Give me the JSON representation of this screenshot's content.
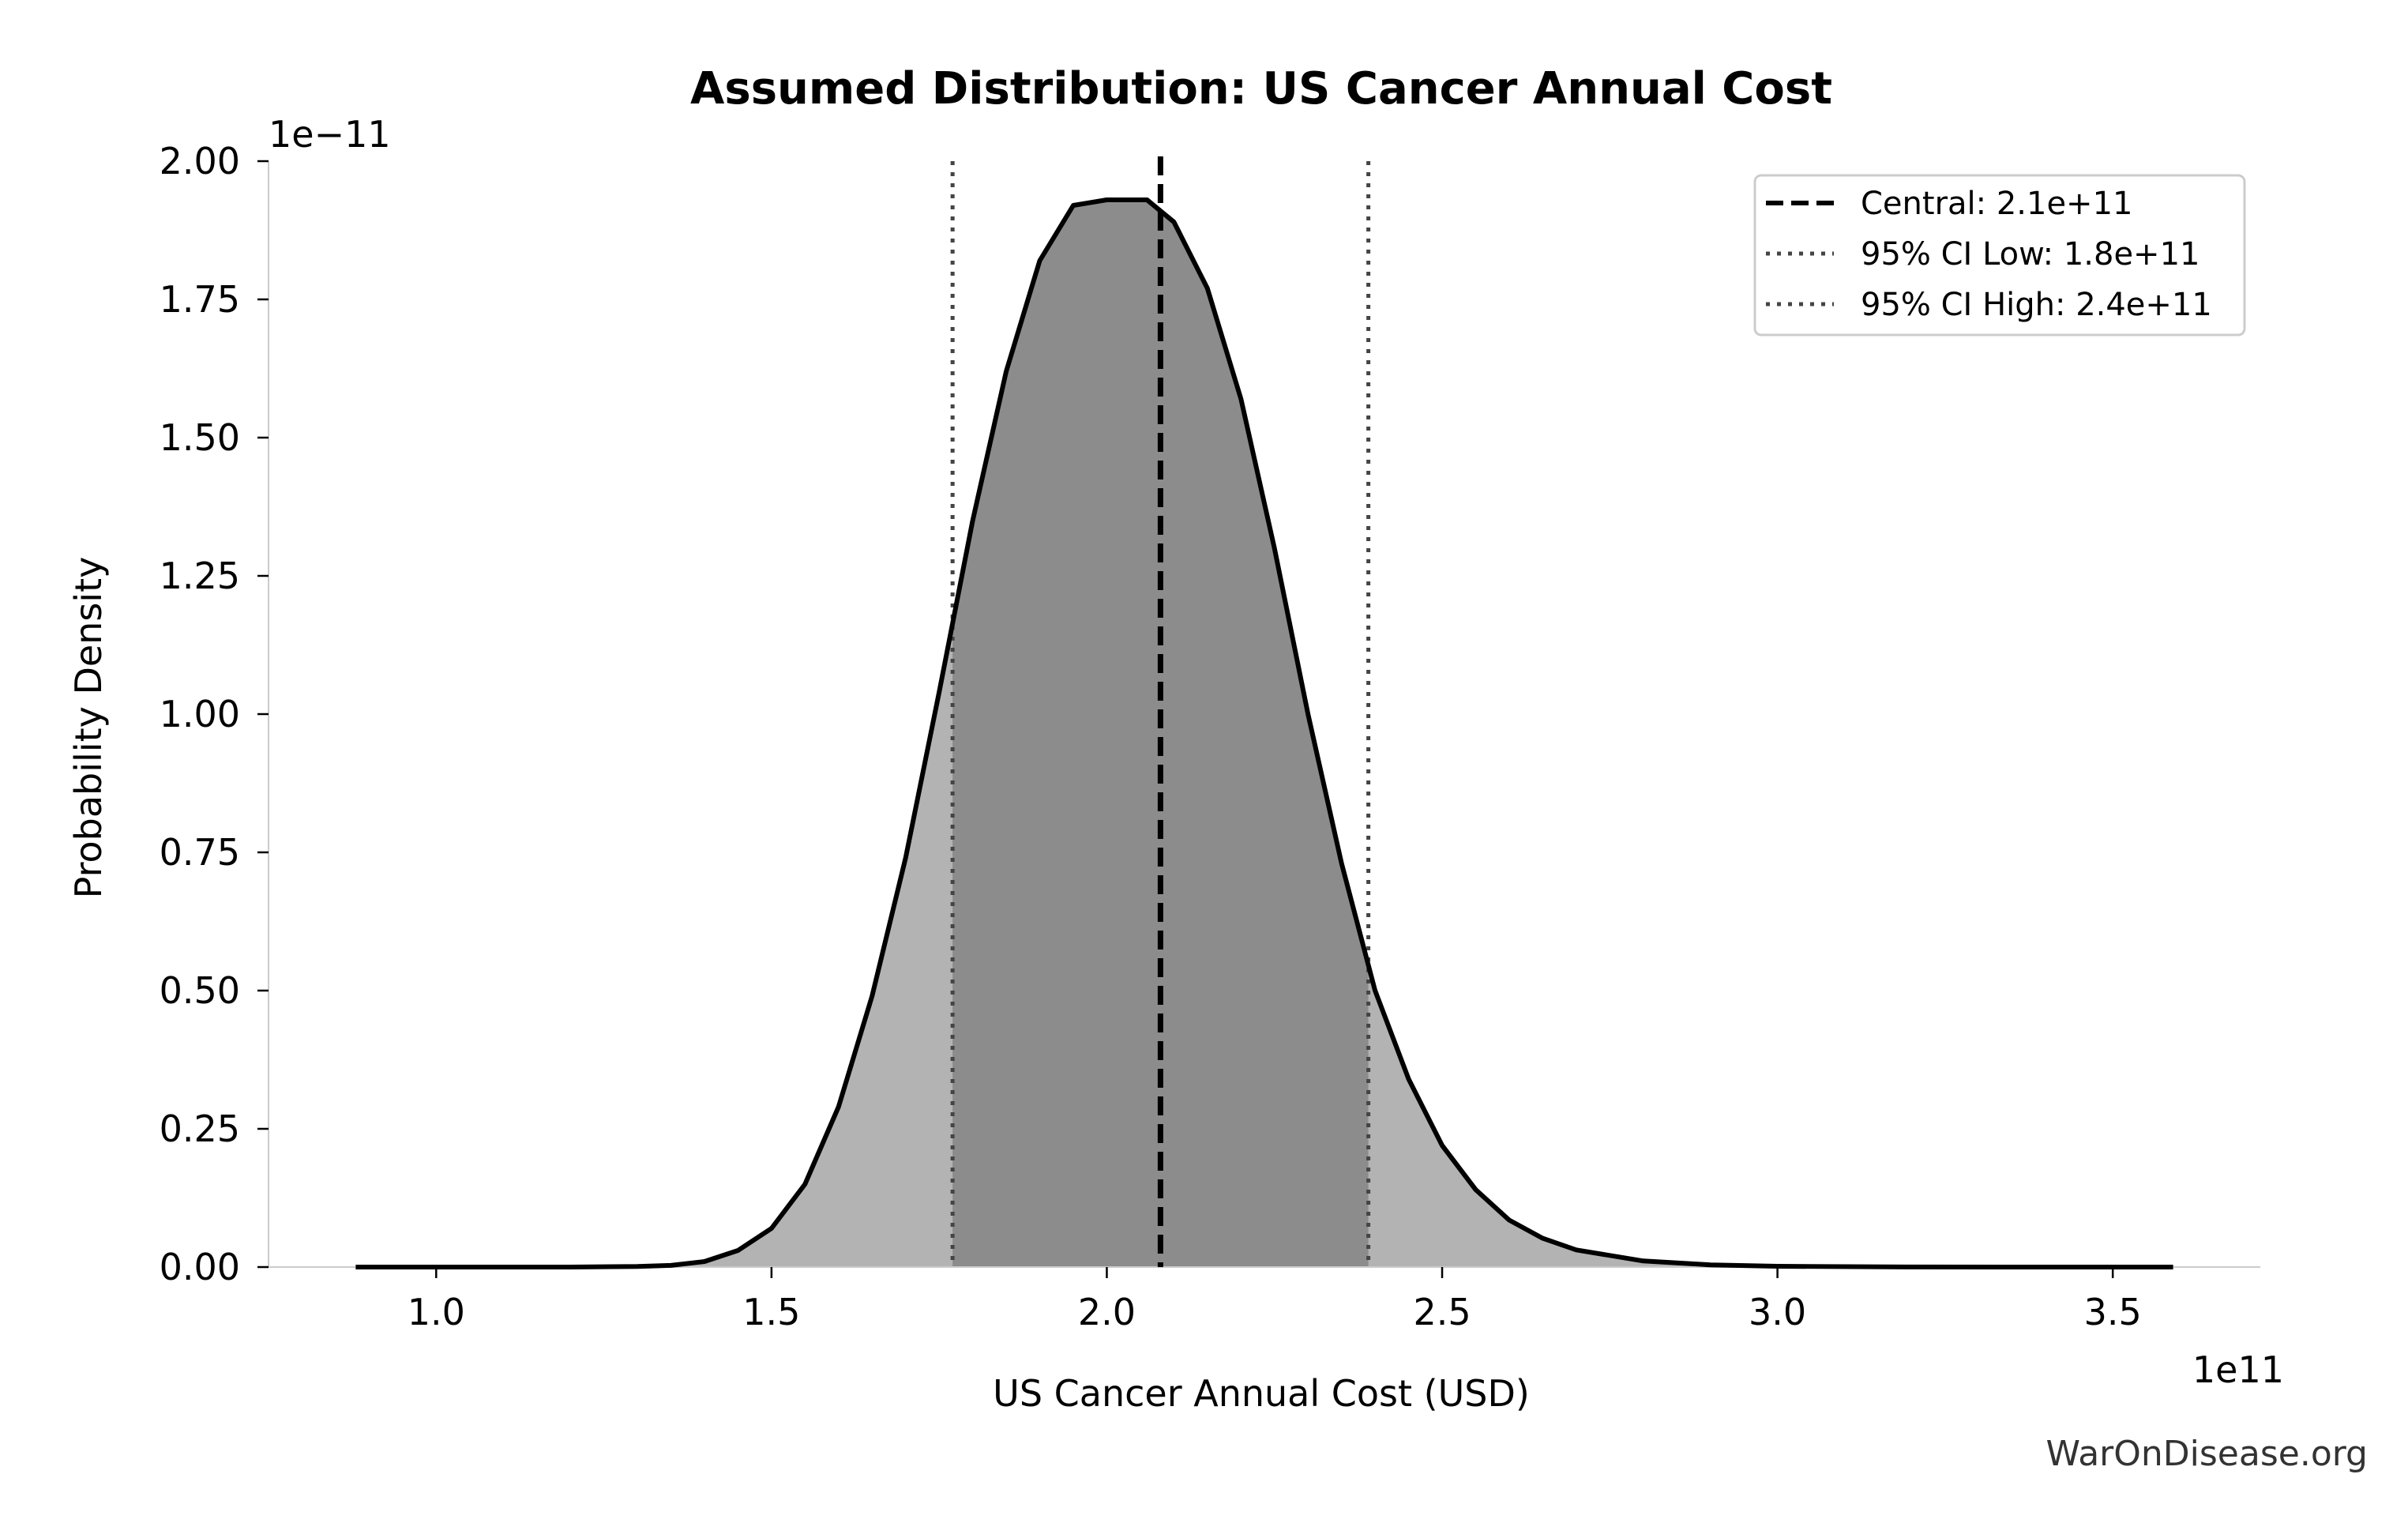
{
  "chart_data": {
    "type": "area",
    "title": "Assumed Distribution: US Cancer Annual Cost",
    "xlabel": "US Cancer Annual Cost (USD)",
    "ylabel": "Probability Density",
    "x_offset_label": "1e11",
    "y_offset_label": "1e−11",
    "xlim": [
      0.75,
      3.72
    ],
    "ylim": [
      0,
      2.0
    ],
    "x_ticks": [
      1.0,
      1.5,
      2.0,
      2.5,
      3.0,
      3.5
    ],
    "x_tick_labels": [
      "1.0",
      "1.5",
      "2.0",
      "2.5",
      "3.0",
      "3.5"
    ],
    "y_ticks": [
      0,
      0.25,
      0.5,
      0.75,
      1.0,
      1.25,
      1.5,
      1.75,
      2.0
    ],
    "y_tick_labels": [
      "0.00",
      "0.25",
      "0.50",
      "0.75",
      "1.00",
      "1.25",
      "1.50",
      "1.75",
      "2.00"
    ],
    "curve": {
      "x": [
        0.88,
        1.0,
        1.1,
        1.2,
        1.3,
        1.35,
        1.4,
        1.45,
        1.5,
        1.55,
        1.6,
        1.65,
        1.7,
        1.75,
        1.8,
        1.85,
        1.9,
        1.95,
        2.0,
        2.03,
        2.06,
        2.1,
        2.15,
        2.2,
        2.25,
        2.3,
        2.35,
        2.4,
        2.45,
        2.5,
        2.55,
        2.6,
        2.65,
        2.7,
        2.8,
        2.9,
        3.0,
        3.2,
        3.4,
        3.59
      ],
      "y": [
        0.0,
        0.0,
        0.0,
        0.0,
        0.001,
        0.003,
        0.01,
        0.03,
        0.07,
        0.15,
        0.29,
        0.49,
        0.74,
        1.04,
        1.35,
        1.62,
        1.82,
        1.92,
        1.93,
        1.93,
        1.93,
        1.89,
        1.77,
        1.57,
        1.3,
        1.0,
        0.73,
        0.5,
        0.34,
        0.22,
        0.14,
        0.085,
        0.052,
        0.031,
        0.011,
        0.004,
        0.0015,
        0.0002,
        0.0,
        0.0
      ]
    },
    "central": {
      "label": "Central: 2.1e+11",
      "value": 2.08
    },
    "ci_low": {
      "label": "95% CI Low: 1.8e+11",
      "value": 1.77
    },
    "ci_high": {
      "label": "95% CI High: 2.4e+11",
      "value": 2.39
    },
    "colors": {
      "curve": "#000000",
      "tail_fill": "#b3b3b3",
      "ci_fill": "#8c8c8c",
      "ci_lines": "#444444"
    },
    "legend_position": "top-right",
    "grid": false
  },
  "watermark": "WarOnDisease.org"
}
